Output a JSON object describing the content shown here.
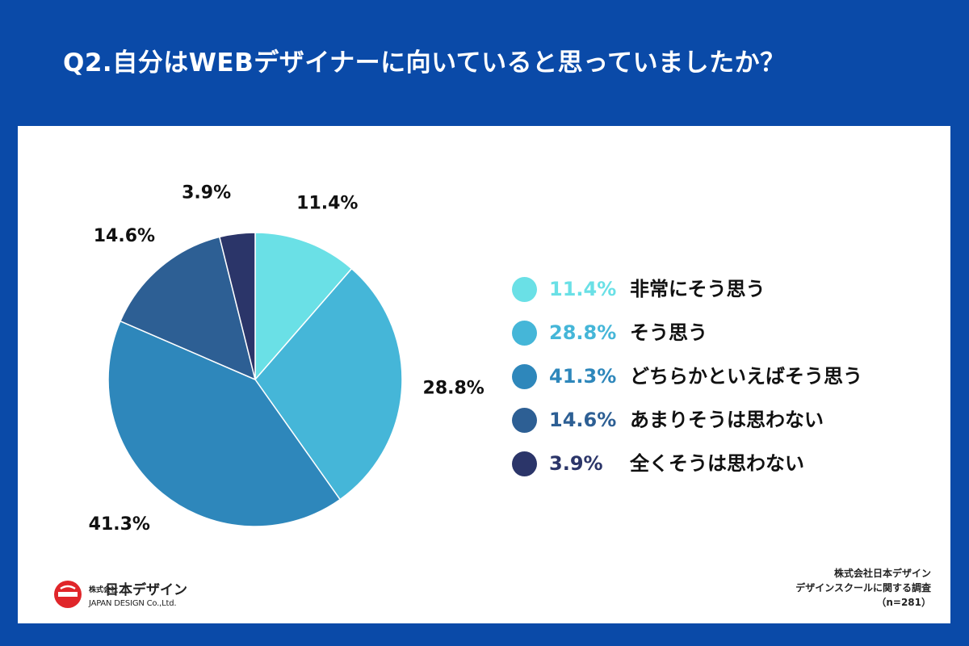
{
  "title": "Q2.自分はWEBデザイナーに向いていると思っていましたか？",
  "chart_data": {
    "type": "pie",
    "title": "Q2.自分はWEBデザイナーに向いていると思っていましたか？",
    "start": "top, clockwise",
    "slices": [
      {
        "label": "非常にそう思う",
        "value": 11.4,
        "pct_text": "11.4%",
        "color": "#6ae0e6"
      },
      {
        "label": "そう思う",
        "value": 28.8,
        "pct_text": "28.8%",
        "color": "#45b6d8"
      },
      {
        "label": "どちらかといえばそう思う",
        "value": 41.3,
        "pct_text": "41.3%",
        "color": "#2e87bb"
      },
      {
        "label": "あまりそうは思わない",
        "value": 14.6,
        "pct_text": "14.6%",
        "color": "#2d5f94"
      },
      {
        "label": "全くそうは思わない",
        "value": 3.9,
        "pct_text": "3.9%",
        "color": "#2b3569"
      }
    ]
  },
  "logo": {
    "company_small": "株式会社",
    "company_name": "日本デザイン",
    "company_en": "JAPAN DESIGN Co.,Ltd."
  },
  "source": {
    "line1": "株式会社日本デザイン",
    "line2": "デザインスクールに関する調査",
    "line3": "（n=281）"
  },
  "colors": {
    "background": "#0a4aa8",
    "panel": "#ffffff",
    "logo_red": "#e0262a"
  }
}
